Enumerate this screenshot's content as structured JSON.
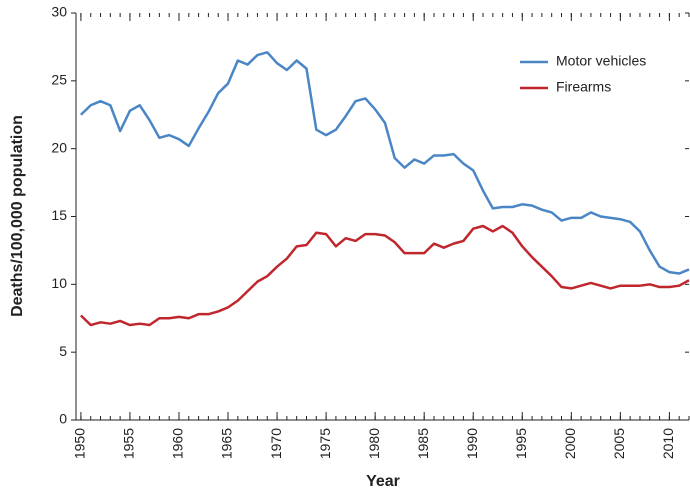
{
  "chart_data": {
    "type": "line",
    "x_label": "Year",
    "y_label": "Deaths/100,000 population",
    "x": [
      1950,
      1951,
      1952,
      1953,
      1954,
      1955,
      1956,
      1957,
      1958,
      1959,
      1960,
      1961,
      1962,
      1963,
      1964,
      1965,
      1966,
      1967,
      1968,
      1969,
      1970,
      1971,
      1972,
      1973,
      1974,
      1975,
      1976,
      1977,
      1978,
      1979,
      1980,
      1981,
      1982,
      1983,
      1984,
      1985,
      1986,
      1987,
      1988,
      1989,
      1990,
      1991,
      1992,
      1993,
      1994,
      1995,
      1996,
      1997,
      1998,
      1999,
      2000,
      2001,
      2002,
      2003,
      2004,
      2005,
      2006,
      2007,
      2008,
      2009,
      2010,
      2011,
      2012
    ],
    "series": [
      {
        "name": "Motor vehicles",
        "color": "#4a86c5",
        "values": [
          22.5,
          23.2,
          23.5,
          23.2,
          21.3,
          22.8,
          23.2,
          22.1,
          20.8,
          21.0,
          20.7,
          20.2,
          21.5,
          22.7,
          24.1,
          24.8,
          26.5,
          26.2,
          26.9,
          27.1,
          26.3,
          25.8,
          26.5,
          25.9,
          21.4,
          21.0,
          21.4,
          22.4,
          23.5,
          23.7,
          22.9,
          21.9,
          19.3,
          18.6,
          19.2,
          18.9,
          19.5,
          19.5,
          19.6,
          18.9,
          18.4,
          16.9,
          15.6,
          15.7,
          15.7,
          15.9,
          15.8,
          15.5,
          15.3,
          14.7,
          14.9,
          14.9,
          15.3,
          15.0,
          14.9,
          14.8,
          14.6,
          13.9,
          12.5,
          11.3,
          10.9,
          10.8,
          11.1
        ]
      },
      {
        "name": "Firearms",
        "color": "#c0272d",
        "values": [
          7.7,
          7.0,
          7.2,
          7.1,
          7.3,
          7.0,
          7.1,
          7.0,
          7.5,
          7.5,
          7.6,
          7.5,
          7.8,
          7.8,
          8.0,
          8.3,
          8.8,
          9.5,
          10.2,
          10.6,
          11.3,
          11.9,
          12.8,
          12.9,
          13.8,
          13.7,
          12.8,
          13.4,
          13.2,
          13.7,
          13.7,
          13.6,
          13.1,
          12.3,
          12.3,
          12.3,
          13.0,
          12.7,
          13.0,
          13.2,
          14.1,
          14.3,
          13.9,
          14.3,
          13.8,
          12.8,
          12.0,
          11.3,
          10.6,
          9.8,
          9.7,
          9.9,
          10.1,
          9.9,
          9.7,
          9.9,
          9.9,
          9.9,
          10.0,
          9.8,
          9.8,
          9.9,
          10.3
        ]
      }
    ],
    "xlim": [
      1949.5,
      2012
    ],
    "xticks": [
      1950,
      1955,
      1960,
      1965,
      1970,
      1975,
      1980,
      1985,
      1990,
      1995,
      2000,
      2005,
      2010
    ],
    "ylim": [
      0,
      30
    ],
    "yticks": [
      0,
      5,
      10,
      15,
      20,
      25,
      30
    ],
    "legend": "upper right"
  }
}
